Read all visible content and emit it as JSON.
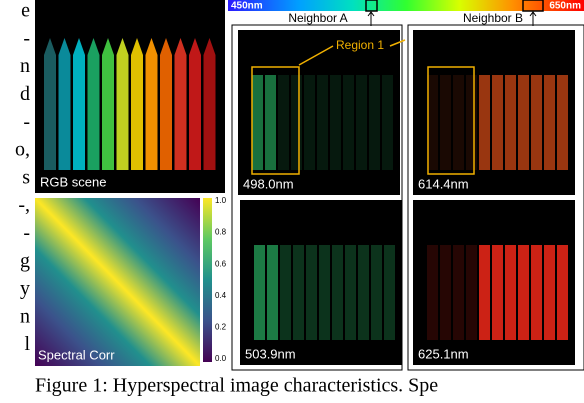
{
  "margin_text": [
    "e",
    "-",
    "n",
    "d",
    "-",
    "o,",
    "s",
    "-,",
    "-",
    "g",
    "y",
    "n",
    "l"
  ],
  "spectrum": {
    "start": "450nm",
    "end": "650nm",
    "neighbor_a": "Neighbor A",
    "neighbor_b": "Neighbor B"
  },
  "region_label": "Region 1",
  "rgb_label": "RGB scene",
  "corr_label": "Spectral Corr",
  "colorbar_ticks": [
    "1.0",
    "0.8",
    "0.6",
    "0.4",
    "0.2",
    "0.0"
  ],
  "panels": [
    {
      "label": "498.0nm"
    },
    {
      "label": "614.4nm"
    },
    {
      "label": "503.9nm"
    },
    {
      "label": "625.1nm"
    }
  ],
  "caption": "Figure 1: Hyperspectral image characteristics. Spe"
}
